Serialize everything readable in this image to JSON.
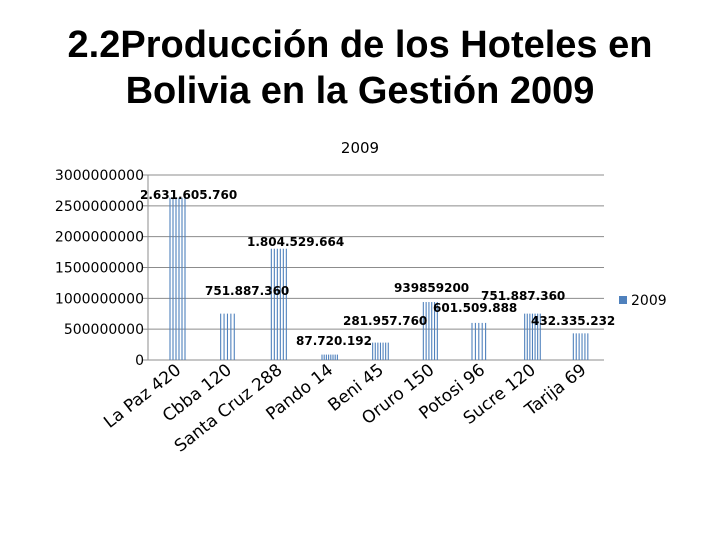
{
  "slide": {
    "title_line1": "2.2Producción de los Hoteles en",
    "title_line2": "Bolivia en la Gestión 2009"
  },
  "colors": {
    "bar": "#4f81bd",
    "grid": "#8c8c8c"
  },
  "chart_data": {
    "type": "bar",
    "title": "2009",
    "categories": [
      "La Paz 420",
      "Cbba 120",
      "Santa Cruz 288",
      "Pando 14",
      "Beni 45",
      "Oruro 150",
      "Potosi 96",
      "Sucre 120",
      "Tarija 69"
    ],
    "series": [
      {
        "name": "2009",
        "values": [
          2631605760,
          751887360,
          1804529664,
          87720192,
          281957760,
          939859200,
          601509888,
          751887360,
          432335232
        ],
        "labels": [
          "2.631.605.760",
          "751.887.360",
          "1.804.529.664",
          "87.720.192",
          "281.957.760",
          "939859200",
          "601.509.888",
          "751.887.360",
          "432.335.232"
        ]
      }
    ],
    "y_ticks": [
      "3000000000",
      "2500000000",
      "2000000000",
      "1500000000",
      "1000000000",
      "500000000",
      "0"
    ],
    "ylim": [
      0,
      3000000000
    ],
    "grid": true,
    "legend": "right"
  }
}
